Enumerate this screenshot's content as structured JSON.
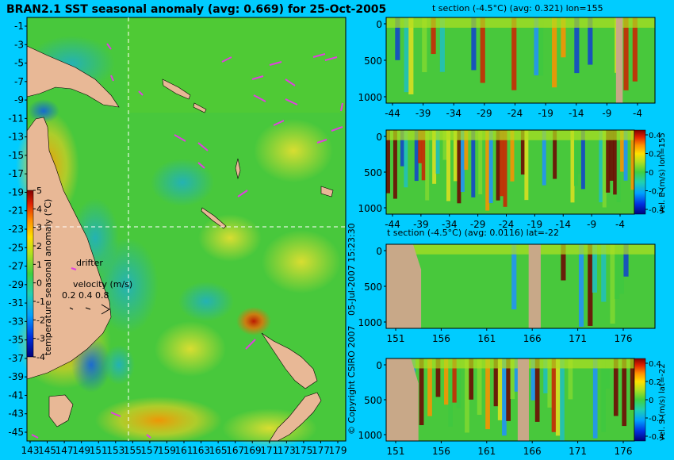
{
  "colors": {
    "background": "#00ccff",
    "land": "#e8b896",
    "section_land": "#c8a888",
    "crosshair": "#ffffff",
    "drifter": "#e040e0"
  },
  "main_map": {
    "title": "BRAN2.1 SST seasonal anomaly (avg: 0.669) for 25-Oct-2005",
    "lat_ticks": [
      "-1",
      "-3",
      "-5",
      "-7",
      "-9",
      "-11",
      "-13",
      "-15",
      "-17",
      "-19",
      "-21",
      "-23",
      "-25",
      "-27",
      "-29",
      "-31",
      "-33",
      "-35",
      "-37",
      "-39",
      "-41",
      "-43",
      "-45"
    ],
    "lon_ticks": [
      "143",
      "145",
      "147",
      "149",
      "151",
      "153",
      "155",
      "157",
      "159",
      "161",
      "163",
      "165",
      "167",
      "169",
      "171",
      "173",
      "175",
      "177",
      "179"
    ],
    "colorbar_label": "temperature seasonal anomaly (°C)",
    "colorbar_ticks": [
      "5",
      "4",
      "3",
      "2",
      "1",
      "0",
      "-1",
      "-2",
      "-3",
      "-4"
    ],
    "drifter_label": "drifter",
    "velocity_label": "velocity (m/s)",
    "velocity_values": "0.2 0.4 0.8",
    "timestamp": "05-Jul-2007 15:23:30",
    "copyright": "© Copyright CSIRO 2007"
  },
  "panels": [
    {
      "title": "t section (-4.5°C) (avg: 0.321) lon=155",
      "x_ticks": [
        "-44",
        "-39",
        "-34",
        "-29",
        "-24",
        "-19",
        "-14",
        "-9",
        "-4"
      ],
      "y_ticks": [
        "0",
        "500",
        "1000"
      ]
    },
    {
      "title": "",
      "x_ticks": [
        "-44",
        "-39",
        "-34",
        "-29",
        "-24",
        "-19",
        "-14",
        "-9",
        "-4"
      ],
      "y_ticks": [
        "0",
        "500",
        "1000"
      ],
      "colorbar_label": "vel. E (m/s) lon=155",
      "colorbar_ticks": [
        "0.4",
        "0.2",
        "0",
        "-0.2",
        "-0.4"
      ]
    },
    {
      "title": "t section (-4.5°C) (avg: 0.0116) lat=-22",
      "x_ticks": [
        "151",
        "156",
        "161",
        "166",
        "171",
        "176"
      ],
      "y_ticks": [
        "0",
        "500",
        "1000"
      ]
    },
    {
      "title": "",
      "x_ticks": [
        "151",
        "156",
        "161",
        "166",
        "171",
        "176"
      ],
      "y_ticks": [
        "0",
        "500",
        "1000"
      ],
      "colorbar_label": "vel. S (m/s) lat=-22",
      "colorbar_ticks": [
        "0.4",
        "0.2",
        "0",
        "-0.2",
        "-0.4"
      ]
    }
  ],
  "chart_data": [
    {
      "type": "heatmap",
      "title": "BRAN2.1 SST seasonal anomaly (avg: 0.669) for 25-Oct-2005",
      "x_ticks": [
        143,
        145,
        147,
        149,
        151,
        153,
        155,
        157,
        159,
        161,
        163,
        165,
        167,
        169,
        171,
        173,
        175,
        177,
        179
      ],
      "y_ticks": [
        -1,
        -3,
        -5,
        -7,
        -9,
        -11,
        -13,
        -15,
        -17,
        -19,
        -21,
        -23,
        -25,
        -27,
        -29,
        -31,
        -33,
        -35,
        -37,
        -39,
        -41,
        -43,
        -45
      ],
      "crosshair": {
        "lon": 155,
        "lat": -22
      },
      "colorbar": {
        "label": "temperature seasonal anomaly (°C)",
        "range": [
          -4,
          5
        ]
      },
      "average": 0.669
    },
    {
      "type": "heatmap",
      "title": "t section (-4.5°C) (avg: 0.321) lon=155",
      "x_ticks": [
        -44,
        -39,
        -34,
        -29,
        -24,
        -19,
        -14,
        -9,
        -4
      ],
      "y_ticks": [
        0,
        500,
        1000
      ],
      "average": 0.321
    },
    {
      "type": "heatmap",
      "x_ticks": [
        -44,
        -39,
        -34,
        -29,
        -24,
        -19,
        -14,
        -9,
        -4
      ],
      "y_ticks": [
        0,
        500,
        1000
      ],
      "colorbar": {
        "label": "vel. E (m/s) lon=155",
        "range": [
          -0.4,
          0.4
        ]
      }
    },
    {
      "type": "heatmap",
      "title": "t section (-4.5°C) (avg: 0.0116) lat=-22",
      "x_ticks": [
        151,
        156,
        161,
        166,
        171,
        176
      ],
      "y_ticks": [
        0,
        500,
        1000
      ],
      "average": 0.0116
    },
    {
      "type": "heatmap",
      "x_ticks": [
        151,
        156,
        161,
        166,
        171,
        176
      ],
      "y_ticks": [
        0,
        500,
        1000
      ],
      "colorbar": {
        "label": "vel. S (m/s) lat=-22",
        "range": [
          -0.4,
          0.4
        ]
      }
    }
  ]
}
